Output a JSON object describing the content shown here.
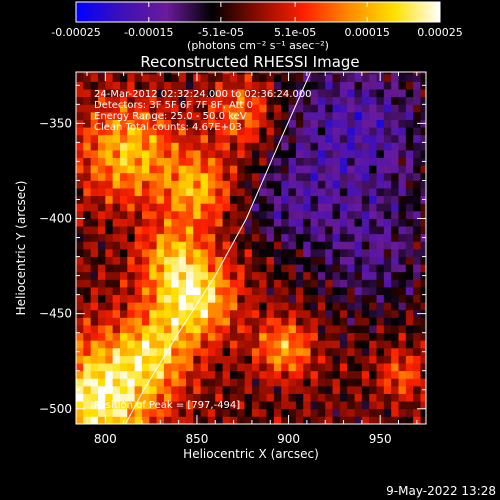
{
  "colorbar": {
    "tick_labels": [
      "-0.00025",
      "-0.00015",
      "-5.1e-05",
      "5.1e-05",
      "0.00015",
      "0.00025"
    ],
    "tick_values": [
      -0.00025,
      -0.00015,
      -5.1e-05,
      5.1e-05,
      0.00015,
      0.00025
    ],
    "range": [
      -0.00025,
      0.00025
    ],
    "units_label": "(photons cm⁻² s⁻¹ asec⁻²)",
    "colors": [
      "#0000ff",
      "#3d10b8",
      "#6a1a9a",
      "#000000",
      "#8c0c00",
      "#ff2000",
      "#ff8a00",
      "#ffe000",
      "#ffffff"
    ]
  },
  "chart_data": {
    "type": "heatmap",
    "title": "Reconstructed RHESSI Image",
    "xlabel": "Heliocentric X (arcsec)",
    "ylabel": "Heliocentric Y (arcsec)",
    "xlim": [
      784,
      975
    ],
    "ylim": [
      -508,
      -323
    ],
    "x_ticks": [
      800,
      850,
      900,
      950
    ],
    "y_ticks": [
      -500,
      -450,
      -400,
      -350
    ],
    "x_tick_labels": [
      "800",
      "850",
      "900",
      "950"
    ],
    "y_tick_labels": [
      "−500",
      "−450",
      "−400",
      "−350"
    ],
    "cell_size_arcsec": 4,
    "limb_points": [
      [
        811,
        -508
      ],
      [
        821,
        -490
      ],
      [
        840,
        -460
      ],
      [
        860,
        -430
      ],
      [
        877,
        -400
      ],
      [
        895,
        -360
      ],
      [
        912,
        -323
      ]
    ],
    "annotations": [
      "24-Mar-2012 02:32:24.000 to 02:36:24.000",
      "Detectors: 3F 5F 6F 7F 8F, Att 0",
      "Energy Range: 25.0 - 50.0 keV",
      "Clean    Total counts: 4.67E+03"
    ],
    "peak_label": "Position of Peak = [797,-494]",
    "peak": [
      797,
      -494
    ],
    "sources": [
      {
        "x": 797,
        "y": -494,
        "radius": 22,
        "amplitude": 1.0
      },
      {
        "x": 848,
        "y": -440,
        "radius": 16,
        "amplitude": 0.95
      },
      {
        "x": 850,
        "y": -384,
        "radius": 13,
        "amplitude": 0.7
      },
      {
        "x": 812,
        "y": -365,
        "radius": 18,
        "amplitude": 0.75
      },
      {
        "x": 827,
        "y": -470,
        "radius": 15,
        "amplitude": 0.6
      },
      {
        "x": 898,
        "y": -468,
        "radius": 11,
        "amplitude": 0.65
      },
      {
        "x": 875,
        "y": -345,
        "radius": 13,
        "amplitude": 0.55
      },
      {
        "x": 835,
        "y": -418,
        "radius": 12,
        "amplitude": 0.5
      },
      {
        "x": 962,
        "y": -482,
        "radius": 9,
        "amplitude": 0.45
      }
    ],
    "negative_regions": [
      {
        "x": 935,
        "y": -355,
        "radius": 30,
        "amplitude": -0.55
      },
      {
        "x": 945,
        "y": -420,
        "radius": 22,
        "amplitude": -0.35
      },
      {
        "x": 900,
        "y": -395,
        "radius": 16,
        "amplitude": -0.3
      }
    ]
  },
  "footer": {
    "date": "9-May-2022 13:28"
  }
}
